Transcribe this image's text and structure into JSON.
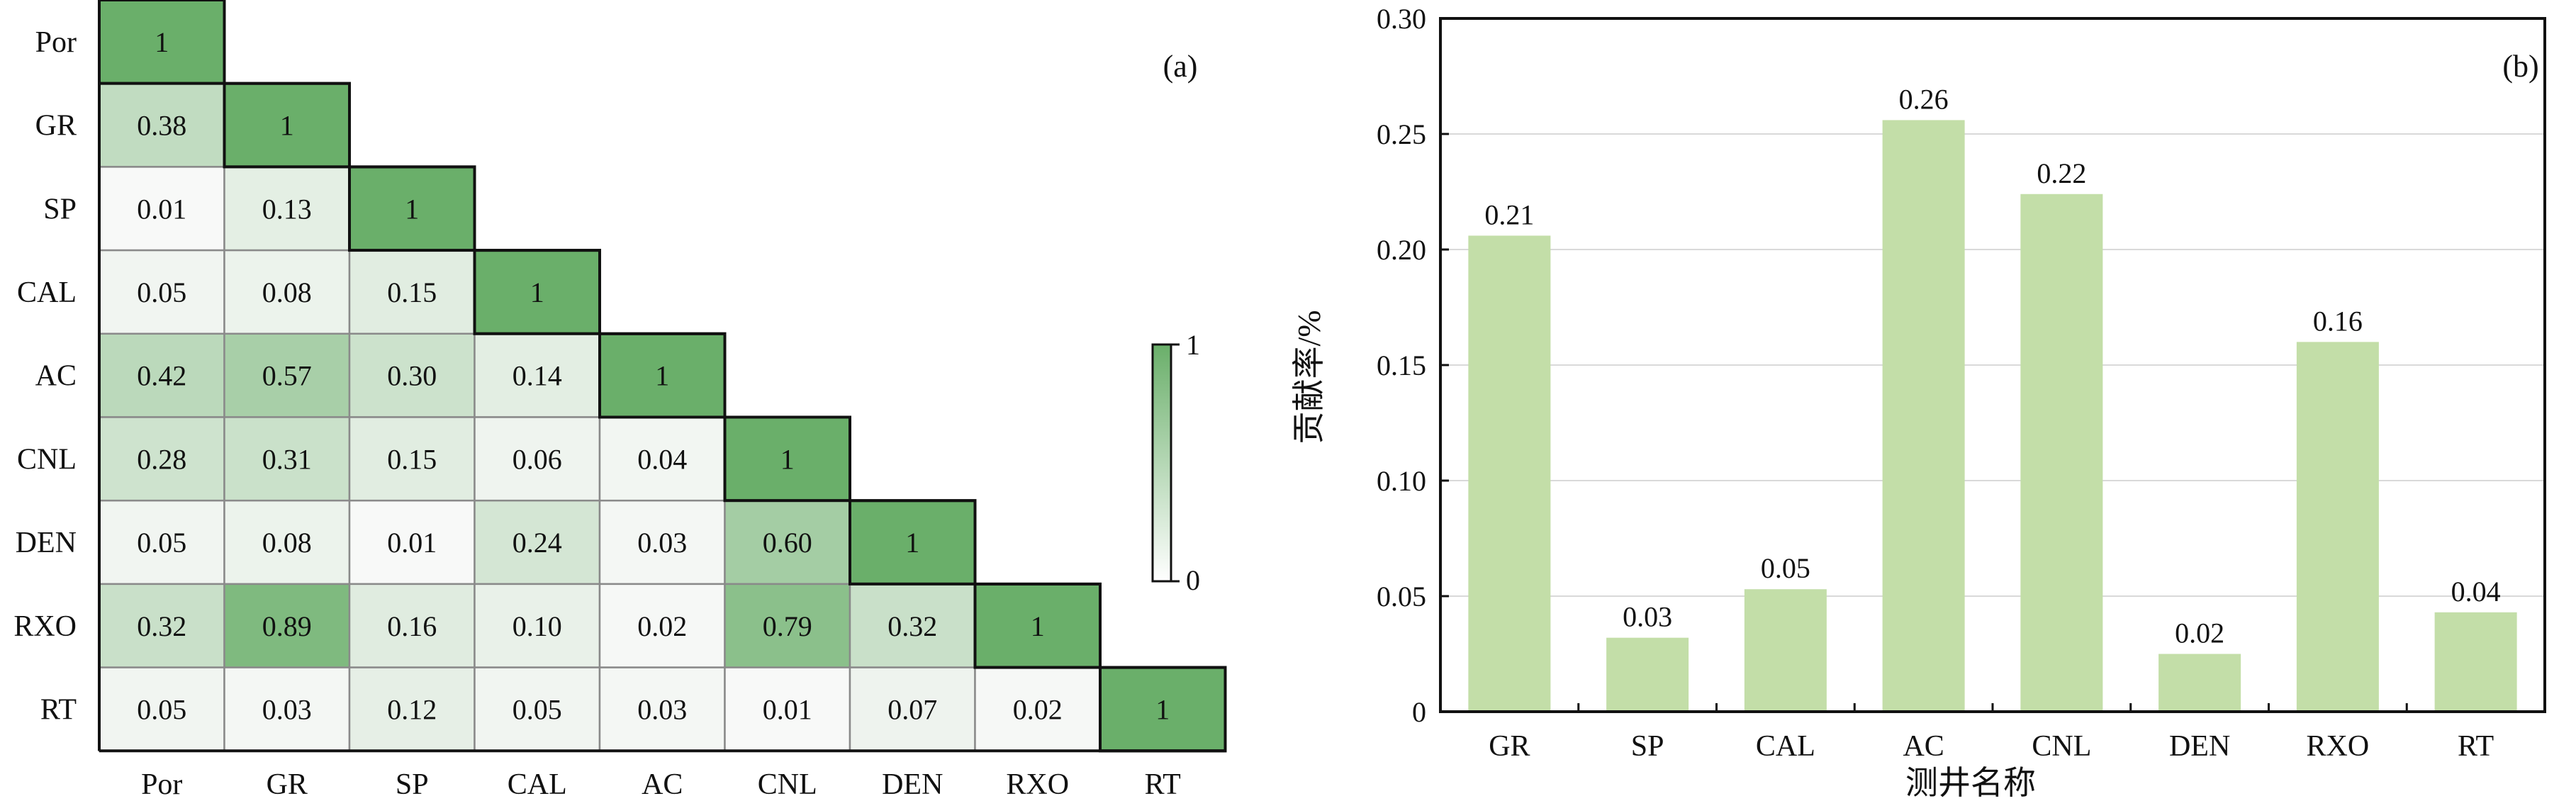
{
  "heatmap": {
    "panel_label": "(a)",
    "row_labels": [
      "Por",
      "GR",
      "SP",
      "CAL",
      "AC",
      "CNL",
      "DEN",
      "RXO",
      "RT"
    ],
    "col_labels": [
      "Por",
      "GR",
      "SP",
      "CAL",
      "AC",
      "CNL",
      "DEN",
      "RXO",
      "RT"
    ],
    "colorbar": {
      "max_label": "1",
      "min_label": "0"
    }
  },
  "bar": {
    "panel_label": "(b)",
    "ylabel": "贡献率/%",
    "xlabel": "测井名称",
    "yticks": [
      "0",
      "0.05",
      "0.10",
      "0.15",
      "0.20",
      "0.25",
      "0.30"
    ]
  },
  "chart_data": [
    {
      "type": "heatmap",
      "title": "",
      "colors": {
        "low": "#ffffff",
        "high": "#6aaf6a"
      },
      "x": [
        "Por",
        "GR",
        "SP",
        "CAL",
        "AC",
        "CNL",
        "DEN",
        "RXO",
        "RT"
      ],
      "y": [
        "Por",
        "GR",
        "SP",
        "CAL",
        "AC",
        "CNL",
        "DEN",
        "RXO",
        "RT"
      ],
      "values": [
        [
          "1"
        ],
        [
          "0.38",
          "1"
        ],
        [
          "0.01",
          "0.13",
          "1"
        ],
        [
          "0.05",
          "0.08",
          "0.15",
          "1"
        ],
        [
          "0.42",
          "0.57",
          "0.30",
          "0.14",
          "1"
        ],
        [
          "0.28",
          "0.31",
          "0.15",
          "0.06",
          "0.04",
          "1"
        ],
        [
          "0.05",
          "0.08",
          "0.01",
          "0.24",
          "0.03",
          "0.60",
          "1"
        ],
        [
          "0.32",
          "0.89",
          "0.16",
          "0.10",
          "0.02",
          "0.79",
          "0.32",
          "1"
        ],
        [
          "0.05",
          "0.03",
          "0.12",
          "0.05",
          "0.03",
          "0.01",
          "0.07",
          "0.02",
          "1"
        ]
      ],
      "range": [
        0,
        1
      ],
      "legend": "right"
    },
    {
      "type": "bar",
      "title": "",
      "xlabel": "测井名称",
      "ylabel": "贡献率/%",
      "categories": [
        "GR",
        "SP",
        "CAL",
        "AC",
        "CNL",
        "DEN",
        "RXO",
        "RT"
      ],
      "values": [
        0.206,
        0.032,
        0.053,
        0.256,
        0.224,
        0.025,
        0.16,
        0.043
      ],
      "value_labels": [
        "0.21",
        "0.03",
        "0.05",
        "0.26",
        "0.22",
        "0.02",
        "0.16",
        "0.04"
      ],
      "ylim": [
        0,
        0.3
      ],
      "grid": true,
      "colors": {
        "bar": "#c3dea8"
      }
    }
  ]
}
